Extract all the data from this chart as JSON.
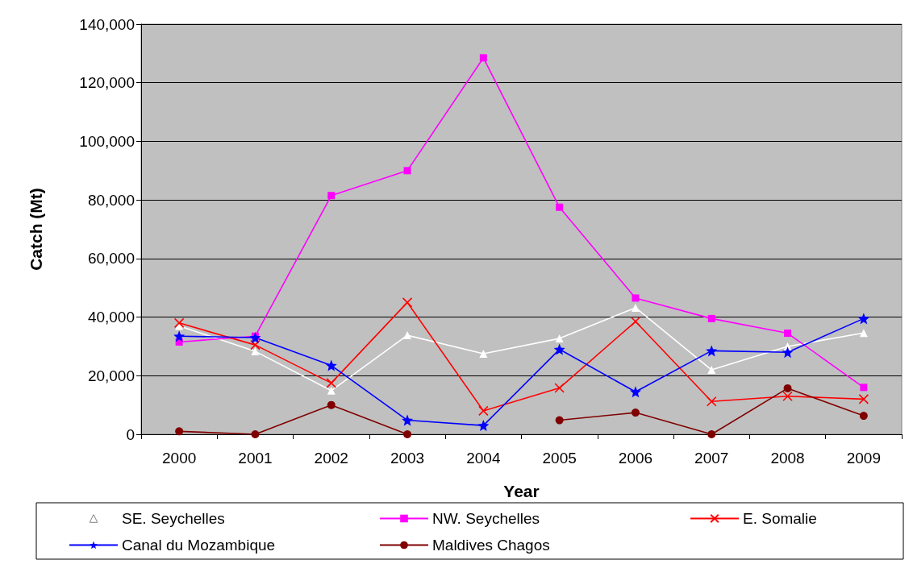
{
  "chart_data": {
    "type": "line",
    "xlabel": "Year",
    "ylabel": "Catch (Mt)",
    "categories": [
      "2000",
      "2001",
      "2002",
      "2003",
      "2004",
      "2005",
      "2006",
      "2007",
      "2008",
      "2009"
    ],
    "ylim": [
      0,
      140000
    ],
    "yticks": [
      {
        "value": 0,
        "label": "0"
      },
      {
        "value": 20000,
        "label": "20,000"
      },
      {
        "value": 40000,
        "label": "40,000"
      },
      {
        "value": 60000,
        "label": "60,000"
      },
      {
        "value": 80000,
        "label": "80,000"
      },
      {
        "value": 100000,
        "label": "100,000"
      },
      {
        "value": 120000,
        "label": "120,000"
      },
      {
        "value": 140000,
        "label": "140,000"
      }
    ],
    "grid": "y",
    "legend": "bottom",
    "series": [
      {
        "name": "SE. Seychelles",
        "color": "#ffffff",
        "marker": "triangle",
        "values": [
          37000,
          28300,
          14900,
          33800,
          27500,
          32700,
          43200,
          22000,
          30000,
          34600
        ]
      },
      {
        "name": "NW. Seychelles",
        "color": "#ff00ff",
        "marker": "square",
        "values": [
          31500,
          33500,
          81500,
          90000,
          128500,
          77500,
          46500,
          39500,
          34500,
          16000
        ]
      },
      {
        "name": "E. Somalie",
        "color": "#ff0000",
        "marker": "cross",
        "values": [
          38000,
          30500,
          17500,
          45000,
          8000,
          15800,
          38500,
          11200,
          13000,
          12000
        ]
      },
      {
        "name": "Canal du Mozambique",
        "color": "#0000ff",
        "marker": "star",
        "values": [
          33500,
          33000,
          23500,
          4800,
          3000,
          29000,
          14500,
          28500,
          28000,
          39500
        ]
      },
      {
        "name": "Maldives Chagos",
        "color": "#800000",
        "marker": "circle",
        "values": [
          1000,
          0,
          10000,
          0,
          null,
          4800,
          7400,
          0,
          15700,
          6300
        ]
      }
    ]
  }
}
